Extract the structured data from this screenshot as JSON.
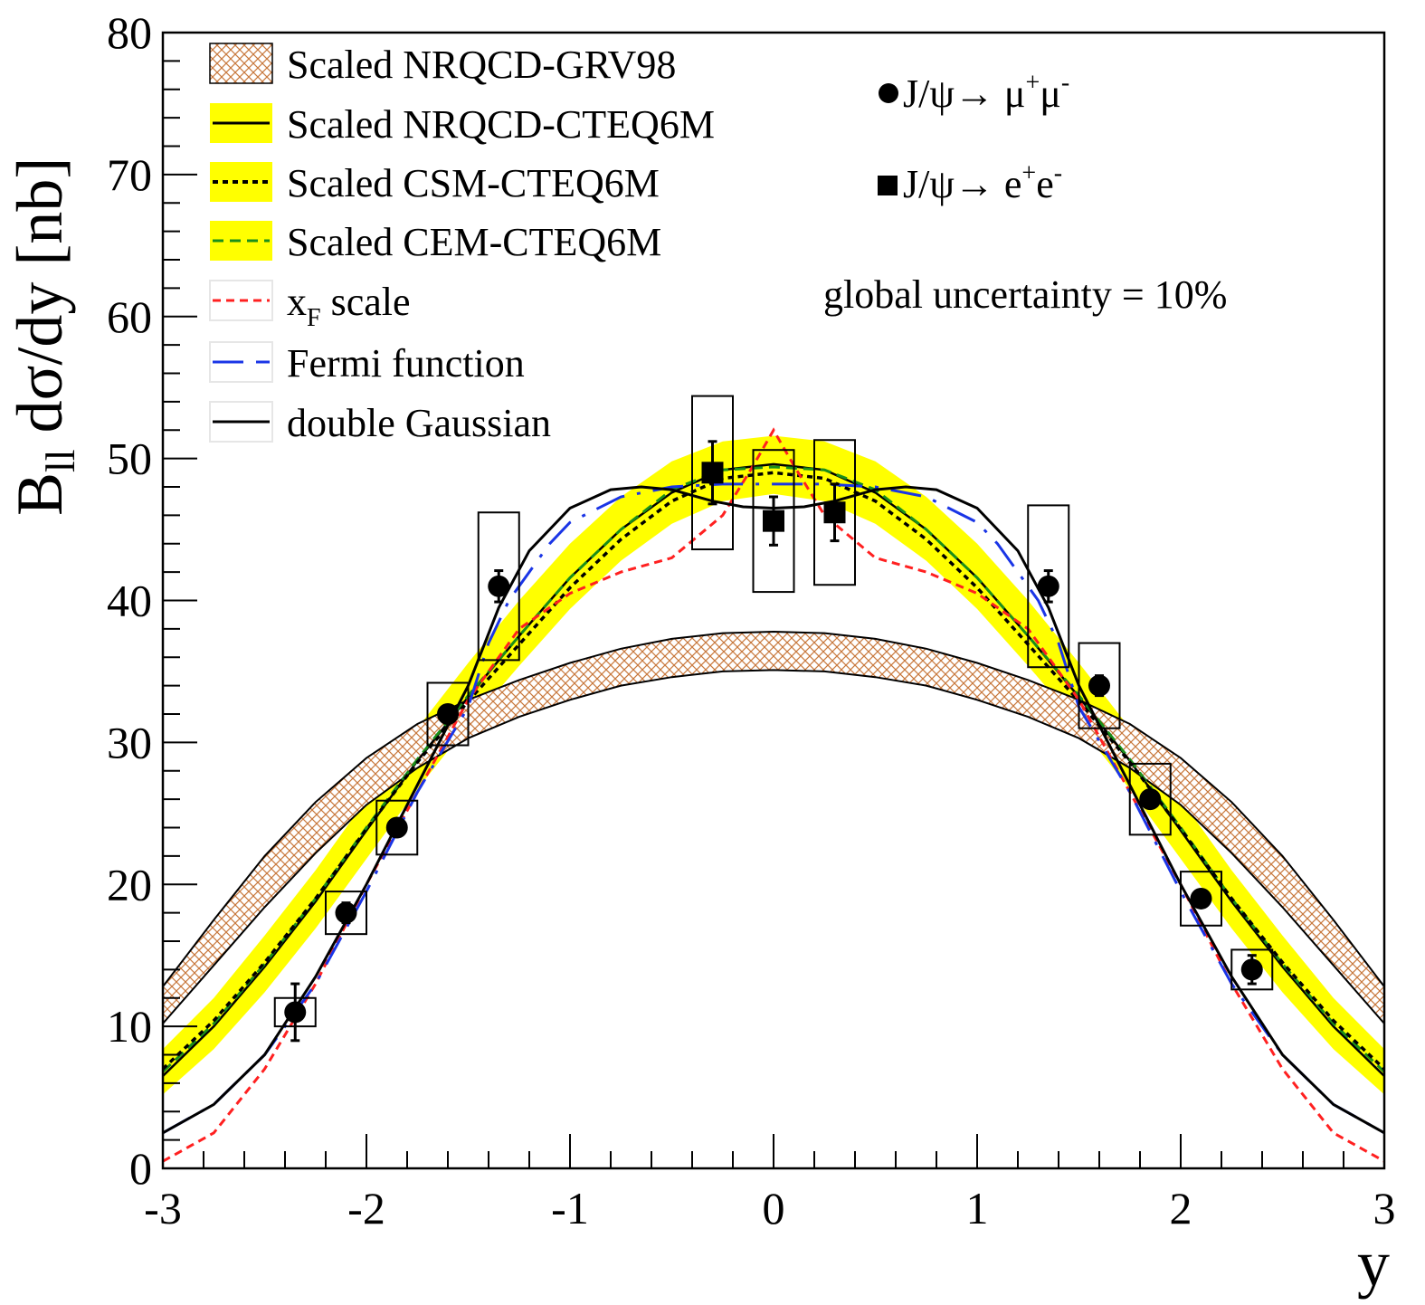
{
  "chart_data": {
    "type": "scatter",
    "xlabel": "y",
    "ylabel_main": "B",
    "ylabel_sub": "ll",
    "ylabel_rest": " dσ/dy  [nb]",
    "xlim": [
      -3,
      3
    ],
    "ylim": [
      0,
      80
    ],
    "x_ticks": [
      -3,
      -2,
      -1,
      0,
      1,
      2,
      3
    ],
    "x_tick_labels": [
      "-3",
      "-2",
      "-1",
      "0",
      "1",
      "2",
      "3"
    ],
    "y_ticks": [
      0,
      10,
      20,
      30,
      40,
      50,
      60,
      70,
      80
    ],
    "y_tick_labels": [
      "0",
      "10",
      "20",
      "30",
      "40",
      "50",
      "60",
      "70",
      "80"
    ],
    "grid": false,
    "legend": {
      "placement": "top-left",
      "entries": [
        {
          "label": "Scaled NRQCD-GRV98",
          "style": "hatch",
          "color": "#c8783c"
        },
        {
          "label": "Scaled NRQCD-CTEQ6M",
          "style": "solid-band",
          "color": "#000000",
          "band": "#ffff00"
        },
        {
          "label": "Scaled CSM-CTEQ6M",
          "style": "dotted-band",
          "color": "#000000",
          "band": "#ffff00"
        },
        {
          "label": "Scaled CEM-CTEQ6M",
          "style": "dashed-band",
          "color": "#1a8f1a",
          "band": "#ffff00"
        },
        {
          "label": "x",
          "label_sub": "F",
          "label_rest": " scale",
          "style": "dashed",
          "color": "#ff2020"
        },
        {
          "label": "Fermi function",
          "style": "longdash",
          "color": "#1a35e6"
        },
        {
          "label": "double Gaussian",
          "style": "solid",
          "color": "#000000"
        }
      ]
    },
    "annotations": {
      "mumu_label": "J/ψ→ μ",
      "mumu_sup1": "+",
      "mumu_mid": "μ",
      "mumu_sup2": "-",
      "ee_label": "J/ψ→ e",
      "ee_sup1": "+",
      "ee_mid": "e",
      "ee_sup2": "-",
      "global": "global uncertainty = 10%"
    },
    "series": [
      {
        "name": "J/ψ→ μ+μ-",
        "marker": "circle",
        "points": [
          {
            "x": -2.35,
            "y": 11,
            "stat": 2,
            "sys": 1,
            "bw": 0.2
          },
          {
            "x": -2.1,
            "y": 18,
            "stat": 0.7,
            "sys": 1.5,
            "bw": 0.2
          },
          {
            "x": -1.85,
            "y": 24,
            "stat": 0.6,
            "sys": 1.9,
            "bw": 0.2
          },
          {
            "x": -1.6,
            "y": 32,
            "stat": 0.6,
            "sys": 2.2,
            "bw": 0.2
          },
          {
            "x": -1.35,
            "y": 41,
            "stat": 1.1,
            "sys": 5.2,
            "bw": 0.2
          },
          {
            "x": 1.35,
            "y": 41,
            "stat": 1.1,
            "sys": 5.7,
            "bw": 0.2
          },
          {
            "x": 1.6,
            "y": 34,
            "stat": 0.7,
            "sys": 3.0,
            "bw": 0.2
          },
          {
            "x": 1.85,
            "y": 26,
            "stat": 0.6,
            "sys": 2.5,
            "bw": 0.2
          },
          {
            "x": 2.1,
            "y": 19,
            "stat": 0.6,
            "sys": 1.9,
            "bw": 0.2
          },
          {
            "x": 2.35,
            "y": 14,
            "stat": 1,
            "sys": 1.4,
            "bw": 0.2
          }
        ]
      },
      {
        "name": "J/ψ→ e+e-",
        "marker": "square",
        "points": [
          {
            "x": -0.3,
            "y": 49,
            "stat": 2.2,
            "sys": 5.4,
            "bw": 0.2
          },
          {
            "x": 0.0,
            "y": 45.6,
            "stat": 1.7,
            "sys": 5.0,
            "bw": 0.2
          },
          {
            "x": 0.3,
            "y": 46.2,
            "stat": 2.0,
            "sys": 5.1,
            "bw": 0.2
          }
        ]
      }
    ],
    "curves": {
      "nrqcd_grv98_low": {
        "x": [
          -3,
          -2.75,
          -2.5,
          -2.25,
          -2,
          -1.75,
          -1.5,
          -1.25,
          -1,
          -0.75,
          -0.5,
          -0.25,
          0,
          0.25,
          0.5,
          0.75,
          1,
          1.25,
          1.5,
          1.75,
          2,
          2.25,
          2.5,
          2.75,
          3
        ],
        "y": [
          10.2,
          14.3,
          18.4,
          22.2,
          25.6,
          28.2,
          30.3,
          31.8,
          33,
          34,
          34.6,
          35,
          35.1,
          35,
          34.6,
          34,
          33,
          31.8,
          30.3,
          28.2,
          25.6,
          22.2,
          18.4,
          14.3,
          10.2
        ]
      },
      "nrqcd_grv98_high": {
        "x": [
          -3,
          -2.75,
          -2.5,
          -2.25,
          -2,
          -1.75,
          -1.5,
          -1.25,
          -1,
          -0.75,
          -0.5,
          -0.25,
          0,
          0.25,
          0.5,
          0.75,
          1,
          1.25,
          1.5,
          1.75,
          2,
          2.25,
          2.5,
          2.75,
          3
        ],
        "y": [
          12.8,
          17.5,
          22,
          25.8,
          28.9,
          31.3,
          33,
          34.4,
          35.6,
          36.6,
          37.3,
          37.7,
          37.8,
          37.7,
          37.3,
          36.6,
          35.6,
          34.4,
          33,
          31.3,
          28.9,
          25.8,
          22,
          17.5,
          12.8
        ]
      },
      "nrqcd_cteq6m": {
        "x": [
          -3,
          -2.75,
          -2.5,
          -2.25,
          -2,
          -1.75,
          -1.5,
          -1.25,
          -1,
          -0.75,
          -0.5,
          -0.25,
          0,
          0.25,
          0.5,
          0.75,
          1,
          1.25,
          1.5,
          1.75,
          2,
          2.25,
          2.5,
          2.75,
          3
        ],
        "y": [
          6.5,
          10,
          14.2,
          18.8,
          23.8,
          28.7,
          33.2,
          37.5,
          41.6,
          45,
          47.6,
          49.2,
          49.6,
          49.2,
          47.6,
          45,
          41.6,
          37.5,
          33.2,
          28.7,
          23.8,
          18.8,
          14.2,
          10,
          6.5
        ]
      },
      "band_low": {
        "x": [
          -3,
          -2.75,
          -2.5,
          -2.25,
          -2,
          -1.75,
          -1.5,
          -1.25,
          -1,
          -0.75,
          -0.5,
          -0.25,
          0,
          0.25,
          0.5,
          0.75,
          1,
          1.25,
          1.5,
          1.75,
          2,
          2.25,
          2.5,
          2.75,
          3
        ],
        "y": [
          5.2,
          8.4,
          12.4,
          16.9,
          21.8,
          26.7,
          31.2,
          35.4,
          39.4,
          42.8,
          45.4,
          47,
          47.5,
          47,
          45.4,
          42.8,
          39.4,
          35.4,
          31.2,
          26.7,
          21.8,
          16.9,
          12.4,
          8.4,
          5.2
        ]
      },
      "band_high": {
        "x": [
          -3,
          -2.75,
          -2.5,
          -2.25,
          -2,
          -1.75,
          -1.5,
          -1.25,
          -1,
          -0.75,
          -0.5,
          -0.25,
          0,
          0.25,
          0.5,
          0.75,
          1,
          1.25,
          1.5,
          1.75,
          2,
          2.25,
          2.5,
          2.75,
          3
        ],
        "y": [
          8.4,
          12,
          16.4,
          21,
          26,
          31,
          35.6,
          40,
          44,
          47.3,
          49.8,
          51.2,
          51.6,
          51.2,
          49.8,
          47.3,
          44,
          40,
          35.6,
          31,
          26,
          21,
          16.4,
          12,
          8.4
        ]
      },
      "csm_cteq6m": {
        "x": [
          -3,
          -2.75,
          -2.5,
          -2.25,
          -2,
          -1.75,
          -1.5,
          -1.25,
          -1,
          -0.75,
          -0.5,
          -0.25,
          0,
          0.25,
          0.5,
          0.75,
          1,
          1.25,
          1.5,
          1.75,
          2,
          2.25,
          2.5,
          2.75,
          3
        ],
        "y": [
          7,
          10.4,
          14.5,
          19,
          23.9,
          28.6,
          32.9,
          36.9,
          40.9,
          44.3,
          47,
          48.6,
          49,
          48.6,
          47,
          44.3,
          40.9,
          36.9,
          32.9,
          28.6,
          23.9,
          19,
          14.5,
          10.4,
          7
        ]
      },
      "cem_cteq6m": {
        "x": [
          -3,
          -2.75,
          -2.5,
          -2.25,
          -2,
          -1.75,
          -1.5,
          -1.25,
          -1,
          -0.75,
          -0.5,
          -0.25,
          0,
          0.25,
          0.5,
          0.75,
          1,
          1.25,
          1.5,
          1.75,
          2,
          2.25,
          2.5,
          2.75,
          3
        ],
        "y": [
          6.8,
          10.2,
          14.4,
          19,
          24,
          28.8,
          33.3,
          37.5,
          41.6,
          45,
          47.8,
          49.2,
          49.4,
          49.2,
          47.8,
          45,
          41.6,
          37.5,
          33.3,
          28.8,
          24,
          19,
          14.4,
          10.2,
          6.8
        ]
      },
      "xf_scale": {
        "x": [
          -3,
          -2.75,
          -2.5,
          -2.25,
          -2,
          -1.75,
          -1.5,
          -1.25,
          -1,
          -0.75,
          -0.5,
          -0.25,
          -0.1,
          0,
          0.1,
          0.25,
          0.5,
          0.75,
          1,
          1.25,
          1.5,
          1.75,
          2,
          2.25,
          2.5,
          2.75,
          3
        ],
        "y": [
          0.5,
          2.5,
          7,
          13,
          20,
          26.5,
          33,
          38,
          40.5,
          42,
          43,
          46,
          49.5,
          52,
          49.5,
          46,
          43,
          42,
          40.5,
          38,
          33,
          26.5,
          20,
          13,
          7,
          2.5,
          0.5
        ]
      },
      "fermi": {
        "x": [
          -3,
          -2.75,
          -2.5,
          -2.25,
          -2,
          -1.75,
          -1.5,
          -1.4,
          -1.3,
          -1.2,
          -1.1,
          -1,
          -0.75,
          -0.5,
          -0.25,
          0,
          0.25,
          0.5,
          0.75,
          1,
          1.1,
          1.2,
          1.3,
          1.4,
          1.5,
          1.75,
          2,
          2.25,
          2.5,
          2.75,
          3
        ],
        "y": [
          2.5,
          4.5,
          8,
          13,
          19.5,
          26.5,
          32.5,
          37,
          40,
          42,
          44,
          45.5,
          47.3,
          48,
          48.2,
          48.2,
          48.2,
          48,
          47.3,
          45.5,
          44,
          42,
          40,
          37,
          32.5,
          26.5,
          19.5,
          13,
          8,
          4.5,
          2.5
        ]
      },
      "double_gaussian": {
        "x": [
          -3,
          -2.75,
          -2.5,
          -2.25,
          -2,
          -1.75,
          -1.5,
          -1.35,
          -1.2,
          -1,
          -0.8,
          -0.65,
          -0.5,
          -0.3,
          -0.15,
          0,
          0.15,
          0.3,
          0.5,
          0.65,
          0.8,
          1,
          1.2,
          1.35,
          1.5,
          1.75,
          2,
          2.25,
          2.5,
          2.75,
          3
        ],
        "y": [
          2.5,
          4.5,
          8,
          13.5,
          20,
          27,
          34,
          39.5,
          43.5,
          46.5,
          47.8,
          48,
          47.8,
          47,
          46.6,
          46.5,
          46.6,
          47,
          47.8,
          48,
          47.8,
          46.5,
          43.5,
          39.5,
          34,
          27,
          20,
          13.5,
          8,
          4.5,
          2.5
        ]
      }
    }
  }
}
